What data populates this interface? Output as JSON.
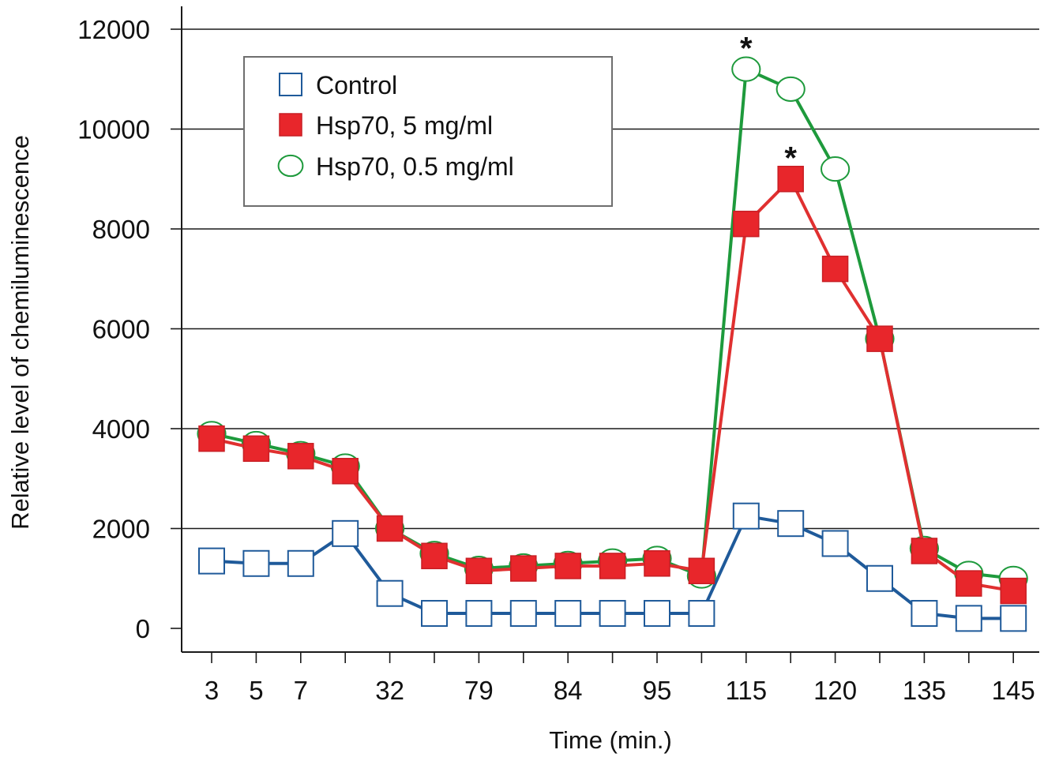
{
  "chart_data": {
    "type": "line",
    "title": "",
    "xlabel": "Time (min.)",
    "ylabel": "Relative level of chemiluminescence",
    "ylim": [
      0,
      12000
    ],
    "yticks": [
      0,
      2000,
      4000,
      6000,
      8000,
      10000,
      12000
    ],
    "grid": true,
    "legend_position": "top-left",
    "categories": [
      "3",
      "5",
      "7",
      "",
      "32",
      "",
      "79",
      "",
      "84",
      "",
      "95",
      "",
      "115",
      "",
      "120",
      "",
      "135",
      "",
      "145"
    ],
    "series": [
      {
        "name": "Control",
        "marker": "open-square",
        "line_color": "#1f5a9a",
        "marker_color": "#1f5a9a",
        "values": [
          1350,
          1300,
          1300,
          1900,
          700,
          300,
          300,
          300,
          300,
          300,
          300,
          300,
          2250,
          2100,
          1700,
          1000,
          300,
          200,
          200
        ]
      },
      {
        "name": "Hsp70, 5 mg/ml",
        "marker": "filled-square",
        "line_color": "#e03030",
        "marker_color": "#e8262b",
        "values": [
          3800,
          3600,
          3450,
          3150,
          2000,
          1450,
          1150,
          1200,
          1250,
          1250,
          1300,
          1150,
          8100,
          9000,
          7200,
          5800,
          1550,
          900,
          750
        ]
      },
      {
        "name": "Hsp70, 0.5 mg/ml",
        "marker": "open-circle",
        "line_color": "#1e9a3c",
        "marker_color": "#1e9a3c",
        "values": [
          3900,
          3700,
          3500,
          3250,
          2000,
          1500,
          1200,
          1250,
          1300,
          1350,
          1400,
          1050,
          11200,
          10800,
          9200,
          5800,
          1600,
          1100,
          1000
        ]
      }
    ],
    "annotations": [
      {
        "text": "*",
        "category_index": 12,
        "value": 11850
      },
      {
        "text": "*",
        "category_index": 13,
        "value": 9650
      }
    ]
  }
}
